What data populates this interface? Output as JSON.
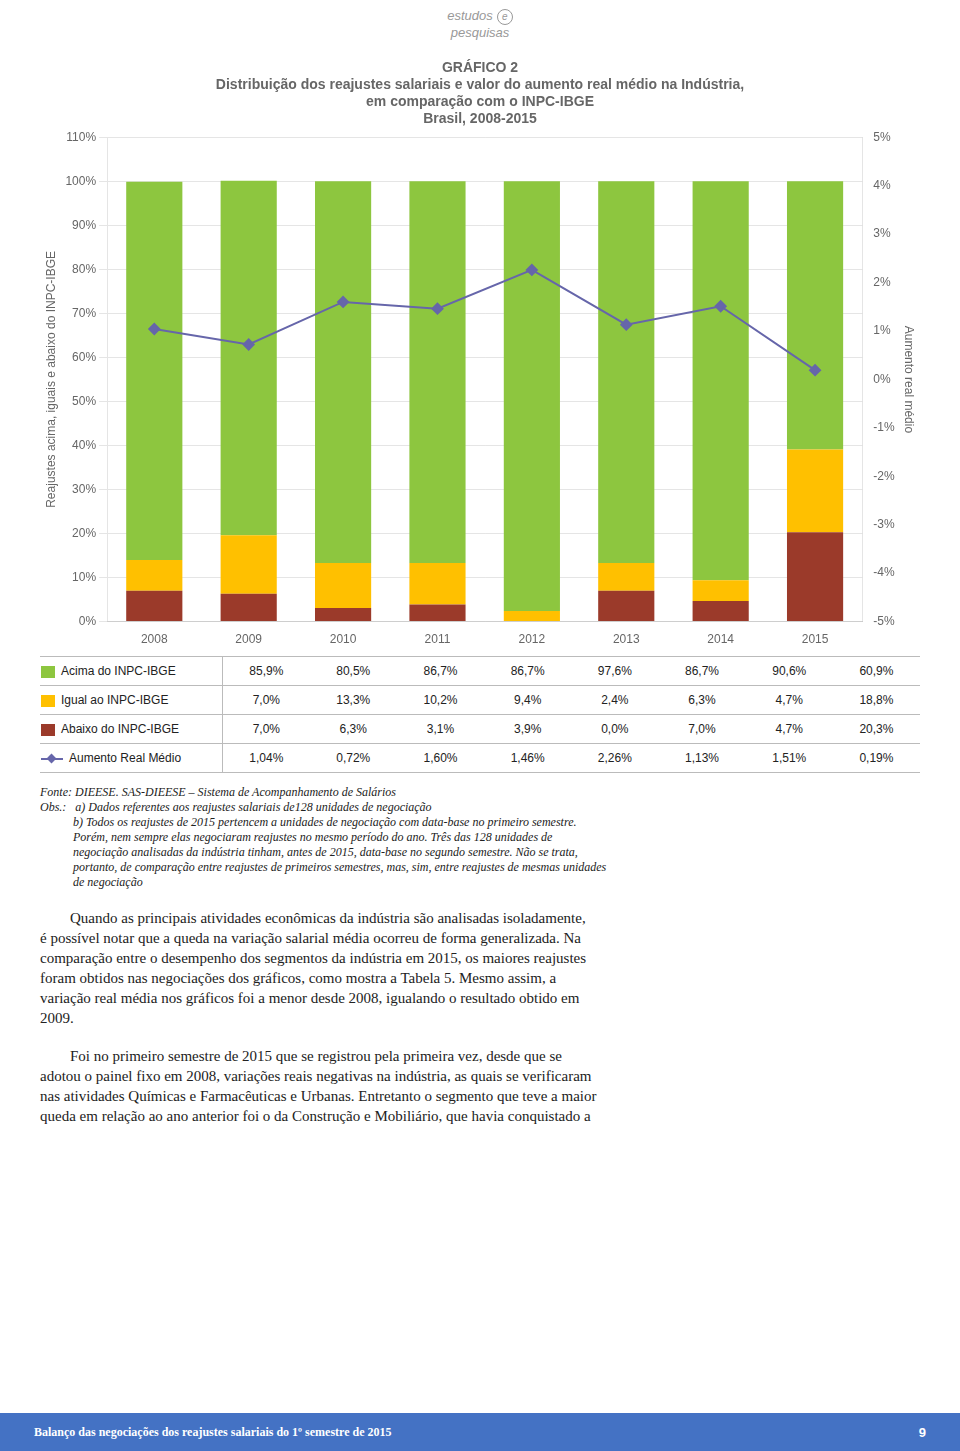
{
  "chart_data": {
    "type": "bar",
    "title": [
      "GRÁFICO 2",
      "Distribuição dos reajustes salariais e valor do aumento real médio na Indústria,",
      "em comparação com o INPC-IBGE",
      "Brasil, 2008-2015"
    ],
    "categories": [
      "2008",
      "2009",
      "2010",
      "2011",
      "2012",
      "2013",
      "2014",
      "2015"
    ],
    "stacked": true,
    "grid": true,
    "legend": "bottom",
    "ylabel": "Reajustes acima, iguais e abaixo do INPC-IBGE",
    "y2label": "Aumento real médio",
    "ylim": [
      0,
      110
    ],
    "yticks": [
      {
        "value": 0,
        "label": "0%"
      },
      {
        "value": 10,
        "label": "10%"
      },
      {
        "value": 20,
        "label": "20%"
      },
      {
        "value": 30,
        "label": "30%"
      },
      {
        "value": 40,
        "label": "40%"
      },
      {
        "value": 50,
        "label": "50%"
      },
      {
        "value": 60,
        "label": "60%"
      },
      {
        "value": 70,
        "label": "70%"
      },
      {
        "value": 80,
        "label": "80%"
      },
      {
        "value": 90,
        "label": "90%"
      },
      {
        "value": 100,
        "label": "100%"
      },
      {
        "value": 110,
        "label": "110%"
      }
    ],
    "y2lim": [
      -5,
      5
    ],
    "y2ticks": [
      {
        "value": -5,
        "label": "-5%"
      },
      {
        "value": -4,
        "label": "-4%"
      },
      {
        "value": -3,
        "label": "-3%"
      },
      {
        "value": -2,
        "label": "-2%"
      },
      {
        "value": -1,
        "label": "-1%"
      },
      {
        "value": 0,
        "label": "0%"
      },
      {
        "value": 1,
        "label": "1%"
      },
      {
        "value": 2,
        "label": "2%"
      },
      {
        "value": 3,
        "label": "3%"
      },
      {
        "value": 4,
        "label": "4%"
      },
      {
        "value": 5,
        "label": "5%"
      }
    ],
    "series": [
      {
        "name": "Abaixo do INPC-IBGE",
        "color": "#9B3A2A",
        "values": [
          7.0,
          6.3,
          3.1,
          3.9,
          0.0,
          7.0,
          4.7,
          20.3
        ],
        "value_labels": [
          "7,0%",
          "6,3%",
          "3,1%",
          "3,9%",
          "0,0%",
          "7,0%",
          "4,7%",
          "20,3%"
        ]
      },
      {
        "name": "Igual ao INPC-IBGE",
        "color": "#FFC000",
        "values": [
          7.0,
          13.3,
          10.2,
          9.4,
          2.4,
          6.3,
          4.7,
          18.8
        ],
        "value_labels": [
          "7,0%",
          "13,3%",
          "10,2%",
          "9,4%",
          "2,4%",
          "6,3%",
          "4,7%",
          "18,8%"
        ]
      },
      {
        "name": "Acima do INPC-IBGE",
        "color": "#8DC63F",
        "values": [
          85.9,
          80.5,
          86.7,
          86.7,
          97.6,
          86.7,
          90.6,
          60.9
        ],
        "value_labels": [
          "85,9%",
          "80,5%",
          "86,7%",
          "86,7%",
          "97,6%",
          "86,7%",
          "90,6%",
          "60,9%"
        ]
      },
      {
        "name": "Aumento Real Médio",
        "type": "line",
        "axis": "y2",
        "color": "#6666AA",
        "marker": "diamond",
        "line_style": "solid",
        "values": [
          1.04,
          0.72,
          1.6,
          1.46,
          2.26,
          1.13,
          1.51,
          0.19
        ],
        "value_labels": [
          "1,04%",
          "0,72%",
          "1,60%",
          "1,46%",
          "2,26%",
          "1,13%",
          "1,51%",
          "0,19%"
        ]
      }
    ]
  },
  "logo": [
    "estudos",
    "pesquisas"
  ],
  "logo_mark": "e",
  "source": "Fonte: DIEESE. SAS-DIEESE – Sistema de Acompanhamento de Salários",
  "notes": [
    "Obs.:   a) Dados referentes aos reajustes salariais de128 unidades de negociação",
    "           b) Todos os reajustes de 2015 pertencem a unidades de negociação com data-base no primeiro semestre.",
    "           Porém, nem sempre elas negociaram reajustes no mesmo período do ano. Três das 128 unidades de",
    "           negociação analisadas da indústria tinham, antes de 2015, data-base no segundo semestre. Não se trata,",
    "           portanto, de comparação entre reajustes de primeiros semestres, mas, sim, entre reajustes de mesmas unidades",
    "           de negociação"
  ],
  "body": [
    [
      "        Quando as principais atividades econômicas da indústria são analisadas isoladamente,",
      "é possível notar que a queda na variação salarial média ocorreu de forma generalizada. Na",
      "comparação entre o desempenho dos segmentos da indústria em 2015, os maiores reajustes",
      "foram obtidos nas negociações dos gráficos, como mostra a Tabela 5. Mesmo assim, a",
      "variação real média nos gráficos foi a menor desde 2008, igualando o resultado obtido em",
      "2009."
    ],
    [
      "        Foi no primeiro semestre de 2015 que se registrou pela primeira vez, desde que se",
      "adotou o painel fixo em 2008, variações reais negativas na indústria, as quais se verificaram",
      "nas atividades Químicas e Farmacêuticas e Urbanas. Entretanto o segmento que teve a maior",
      "queda em relação ao ano anterior foi o da Construção e Mobiliário, que havia conquistado a"
    ]
  ],
  "footer": {
    "text": "Balanço das negociações dos reajustes salariais do 1º semestre de 2015",
    "page": "9",
    "color": "#4472C4"
  }
}
